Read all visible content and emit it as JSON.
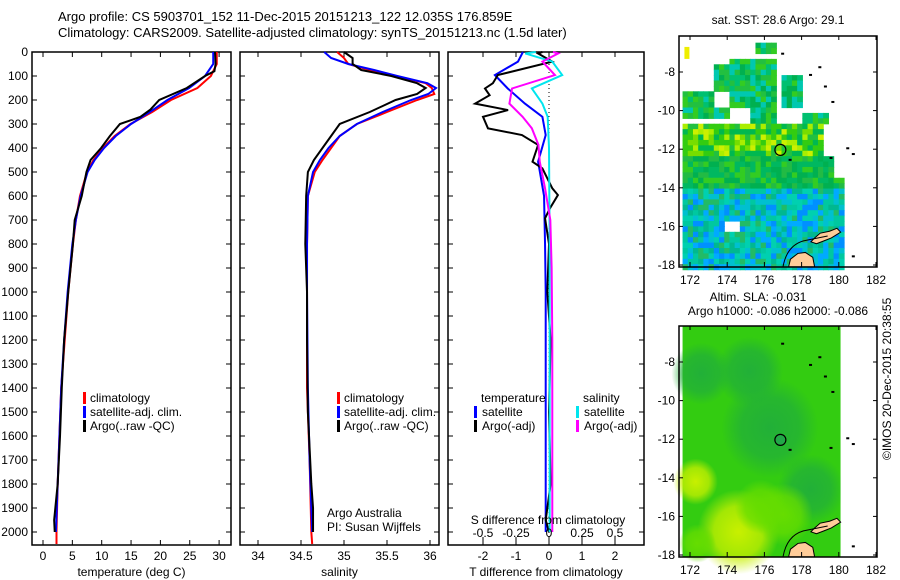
{
  "header": {
    "title_line1": "Argo profile: CS 5903701_152 11-Dec-2015 20151213_122 12.035S 176.859E",
    "title_line2": "Climatology: CARS2009. Satellite-adjusted climatology: synTS_20151213.nc (1.5d later)"
  },
  "credits": {
    "line1": "Argo Australia",
    "line2": "PI: Susan Wijffels",
    "stamp": "©IMOS 20-Dec-2015 20:38:55"
  },
  "colors": {
    "climatology": "#ff0000",
    "satellite": "#0000ff",
    "argo": "#000000",
    "sal_satellite": "#00e5ee",
    "sal_argo": "#ff00ff",
    "land": "#ffcc99"
  },
  "chart_data": [
    {
      "type": "line",
      "name": "temperature-profile",
      "xlabel": "temperature (deg C)",
      "ylim": [
        0,
        2050
      ],
      "xlim": [
        -1.9,
        32
      ],
      "yticks": [
        0,
        100,
        200,
        300,
        400,
        500,
        600,
        700,
        800,
        900,
        1000,
        1100,
        1200,
        1300,
        1400,
        1500,
        1600,
        1700,
        1800,
        1900,
        2000
      ],
      "xticks": [
        0,
        5,
        10,
        15,
        20,
        25,
        30
      ],
      "legend": [
        "climatology",
        "satellite-adj. clim.",
        "Argo(..raw -QC)"
      ],
      "series": [
        {
          "name": "climatology",
          "color": "#ff0000",
          "depth": [
            0,
            50,
            100,
            150,
            200,
            250,
            300,
            350,
            400,
            450,
            500,
            600,
            700,
            800,
            1000,
            1200,
            1400,
            1600,
            1800,
            2000,
            2050
          ],
          "values": [
            29.6,
            29.6,
            28.6,
            26.3,
            21.8,
            18.6,
            14.9,
            12.2,
            10.2,
            8.6,
            7.5,
            6.3,
            5.6,
            5.1,
            4.3,
            3.7,
            3.1,
            2.8,
            2.5,
            2.3,
            2.3
          ]
        },
        {
          "name": "satellite-adj. clim.",
          "color": "#0000ff",
          "depth": [
            0,
            50,
            100,
            150,
            200,
            250,
            300,
            350,
            400,
            450,
            500,
            600,
            700,
            800,
            1000,
            1200,
            1400,
            1600,
            1800,
            2000
          ],
          "values": [
            29.0,
            29.0,
            27.6,
            24.9,
            21.2,
            18.2,
            15.0,
            12.4,
            10.4,
            8.8,
            7.6,
            6.4,
            5.6,
            5.0,
            4.2,
            3.6,
            3.1,
            2.8,
            2.5,
            2.2
          ]
        },
        {
          "name": "Argo(..raw -QC)",
          "color": "#000000",
          "depth": [
            0,
            50,
            80,
            100,
            150,
            200,
            240,
            270,
            300,
            350,
            400,
            450,
            500,
            600,
            700,
            800,
            1000,
            1200,
            1400,
            1600,
            1800,
            1900,
            1950,
            2000
          ],
          "values": [
            29.3,
            29.4,
            29.2,
            27.6,
            24.5,
            19.8,
            18.3,
            16.6,
            13.1,
            11.4,
            9.9,
            8.1,
            7.4,
            6.6,
            5.4,
            5.1,
            4.3,
            3.6,
            3.2,
            2.9,
            2.5,
            2.1,
            1.9,
            2.0
          ]
        }
      ]
    },
    {
      "type": "line",
      "name": "salinity-profile",
      "xlabel": "salinity",
      "ylim": [
        0,
        2050
      ],
      "xlim": [
        33.79,
        36.1
      ],
      "xticks": [
        34,
        34.5,
        35,
        35.5,
        36
      ],
      "legend": [
        "climatology",
        "satellite-adj. clim.",
        "Argo(..raw -QC)"
      ],
      "series": [
        {
          "name": "climatology",
          "color": "#ff0000",
          "depth": [
            0,
            25,
            50,
            75,
            100,
            130,
            150,
            175,
            200,
            250,
            300,
            350,
            400,
            450,
            500,
            600,
            800,
            1000,
            1400,
            1700,
            2000,
            2050
          ],
          "values": [
            34.92,
            35.0,
            35.05,
            35.3,
            35.6,
            35.95,
            36.02,
            36.05,
            35.85,
            35.5,
            35.15,
            34.95,
            34.85,
            34.75,
            34.66,
            34.58,
            34.57,
            34.57,
            34.57,
            34.6,
            34.62,
            34.63
          ]
        },
        {
          "name": "satellite-adj. clim.",
          "color": "#0000ff",
          "depth": [
            0,
            25,
            50,
            75,
            100,
            130,
            150,
            175,
            200,
            250,
            300,
            350,
            400,
            450,
            500,
            600,
            800,
            1000,
            1400,
            1700,
            2000
          ],
          "values": [
            34.77,
            34.85,
            35.05,
            35.35,
            35.62,
            35.97,
            36.07,
            35.98,
            35.78,
            35.45,
            35.15,
            34.95,
            34.82,
            34.72,
            34.64,
            34.58,
            34.57,
            34.57,
            34.58,
            34.6,
            34.63
          ]
        },
        {
          "name": "Argo(..raw -QC)",
          "color": "#000000",
          "depth": [
            0,
            25,
            50,
            75,
            100,
            130,
            150,
            175,
            200,
            250,
            300,
            350,
            400,
            450,
            500,
            600,
            800,
            1000,
            1200,
            1500,
            1800,
            1900,
            2000
          ],
          "values": [
            35.0,
            35.1,
            35.1,
            35.2,
            35.55,
            35.85,
            35.95,
            35.85,
            35.6,
            35.3,
            34.95,
            34.85,
            34.75,
            34.65,
            34.58,
            34.56,
            34.55,
            34.57,
            34.57,
            34.58,
            34.62,
            34.64,
            34.64
          ]
        }
      ]
    },
    {
      "type": "line",
      "name": "difference-profile",
      "xlabel": "T difference from climatology",
      "x2label": "S difference from climatology",
      "xlim": [
        -3.0,
        2.9
      ],
      "xticks": [
        -2,
        -1,
        0,
        1,
        2
      ],
      "x2ticks": [
        "-0.5",
        "-0.25",
        "0",
        "0.25",
        "0.5"
      ],
      "x2tick_values": [
        -0.5,
        -0.25,
        0,
        0.25,
        0.5
      ],
      "legend": {
        "temperature_header": "temperature",
        "salinity_header": "salinity",
        "items": [
          "satellite",
          "Argo(-adj)",
          "satellite",
          "Argo(-adj)"
        ]
      },
      "series": [
        {
          "name": "T satellite",
          "color": "#0000ff",
          "depth": [
            0,
            40,
            96,
            152,
            215,
            270,
            346,
            457,
            600,
            800,
            1000,
            1500,
            2000
          ],
          "values": [
            -0.79,
            -0.94,
            -1.64,
            -1.25,
            -0.73,
            -0.2,
            -0.1,
            -0.33,
            -0.15,
            -0.12,
            -0.1,
            -0.1,
            -0.1
          ]
        },
        {
          "name": "T Argo(-adj)",
          "color": "#000000",
          "depth": [
            0,
            6,
            40,
            96,
            130,
            152,
            180,
            215,
            242,
            270,
            318,
            346,
            387,
            457,
            485,
            568,
            596,
            651,
            693,
            800,
            1000,
            1200,
            1500,
            1800,
            1950,
            2000
          ],
          "values": [
            -0.2,
            -0.33,
            0.1,
            -1.55,
            -1.7,
            -1.94,
            -1.8,
            -2.24,
            -1.24,
            -2.0,
            -1.85,
            -0.82,
            -0.33,
            -0.5,
            -0.2,
            0.1,
            0.27,
            0.03,
            -0.12,
            0.0,
            -0.05,
            0.05,
            0.0,
            0.05,
            -0.1,
            0.0
          ]
        },
        {
          "name": "S satellite",
          "color": "#00e5ee",
          "scale": "S",
          "depth": [
            0,
            6,
            40,
            96,
            152,
            215,
            270,
            400,
            800,
            1500,
            2000
          ],
          "values": [
            -0.1,
            -0.18,
            0.025,
            0.1,
            -0.13,
            -0.05,
            -0.01,
            0.0,
            0.005,
            0.005,
            0.005
          ]
        },
        {
          "name": "S Argo(-adj)",
          "color": "#ff00ff",
          "scale": "S",
          "depth": [
            0,
            6,
            40,
            96,
            152,
            215,
            270,
            318,
            387,
            457,
            568,
            700,
            900,
            1200,
            1500,
            2000
          ],
          "values": [
            0.03,
            0.07,
            -0.05,
            0.045,
            -0.28,
            -0.3,
            -0.2,
            -0.13,
            -0.08,
            -0.07,
            -0.03,
            0.01,
            0.02,
            0.025,
            0.025,
            0.025
          ]
        }
      ]
    },
    {
      "type": "heatmap",
      "name": "sst-map",
      "title": "sat. SST: 28.6 Argo: 29.1",
      "xticks": [
        172,
        174,
        176,
        178,
        180,
        182
      ],
      "yticks": [
        -8,
        -10,
        -12,
        -14,
        -16,
        -18
      ],
      "argo_position": {
        "lon": 176.859,
        "lat": -12.035
      }
    },
    {
      "type": "heatmap",
      "name": "sla-map",
      "title_line1": "Altim. SLA: -0.031",
      "title_line2": "Argo h1000: -0.086 h2000: -0.086",
      "xticks": [
        172,
        174,
        176,
        178,
        180,
        182
      ],
      "yticks": [
        -8,
        -10,
        -12,
        -14,
        -16,
        -18
      ],
      "argo_position": {
        "lon": 176.859,
        "lat": -12.035
      }
    }
  ]
}
